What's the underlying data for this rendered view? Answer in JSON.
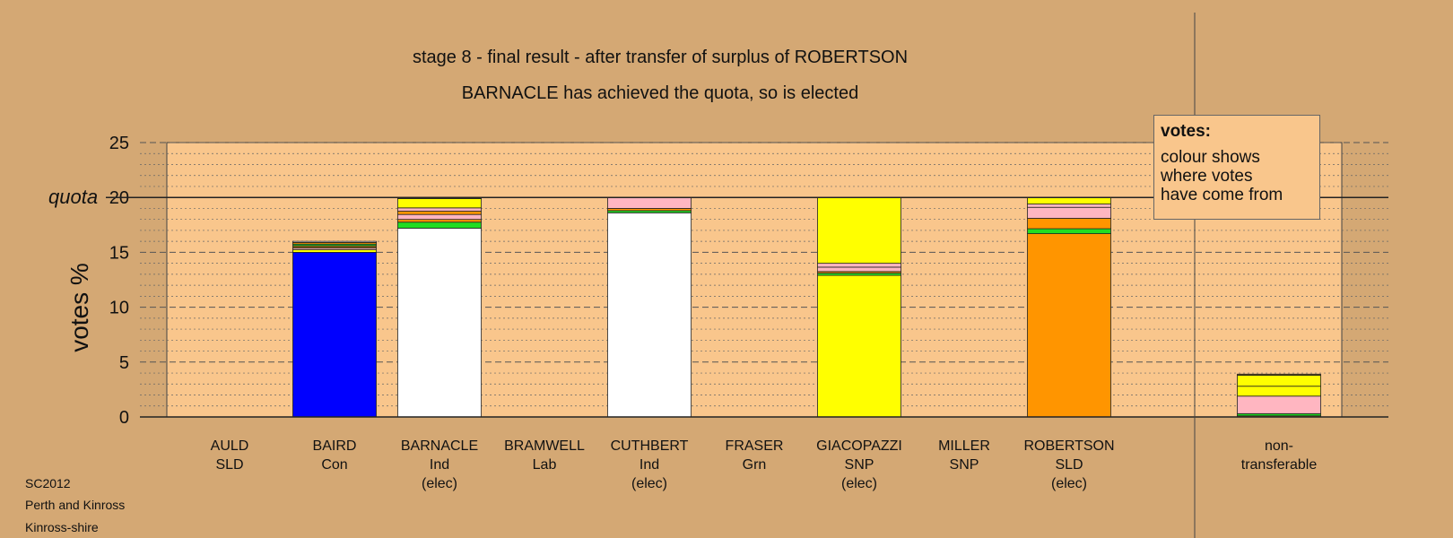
{
  "title": "stage 8 - final result - after transfer of surplus of ROBERTSON",
  "subtitle": "BARNACLE has achieved the quota, so is elected",
  "footer": [
    "SC2012",
    "Perth and Kinross",
    "Kinross-shire"
  ],
  "legend": {
    "title": "votes:",
    "lines": [
      "colour shows",
      "where votes",
      "have come from"
    ]
  },
  "quota_label": "quota",
  "colors": {
    "background": "#D4A874",
    "plot_area": "#F9C68C",
    "Con": "#0000FF",
    "Ind": "#FFFFFF",
    "SNP": "#FFFF00",
    "SLD": "#FF9500",
    "Lab": "#FF0000",
    "Grn": "#22DD22",
    "Ind2": "#FFB6C1",
    "Other": "#8B6914"
  },
  "chart_data": {
    "type": "bar",
    "stacked": true,
    "ylabel": "votes %",
    "ylim": [
      0,
      25
    ],
    "yticks": [
      "0",
      "5",
      "10",
      "15",
      "20",
      "25"
    ],
    "quota": 20,
    "grid": "dashed at 5s, dotted minor",
    "categories": [
      {
        "name": "AULD",
        "party": "SLD",
        "elected": ""
      },
      {
        "name": "BAIRD",
        "party": "Con",
        "elected": ""
      },
      {
        "name": "BARNACLE",
        "party": "Ind",
        "elected": "(elec)"
      },
      {
        "name": "BRAMWELL",
        "party": "Lab",
        "elected": ""
      },
      {
        "name": "CUTHBERT",
        "party": "Ind",
        "elected": "(elec)"
      },
      {
        "name": "FRASER",
        "party": "Grn",
        "elected": ""
      },
      {
        "name": "GIACOPAZZI",
        "party": "SNP",
        "elected": "(elec)"
      },
      {
        "name": "MILLER",
        "party": "SNP",
        "elected": ""
      },
      {
        "name": "ROBERTSON",
        "party": "SLD",
        "elected": "(elec)"
      }
    ],
    "nontransferable_label": [
      "non-",
      "transferable"
    ],
    "bars": [
      [],
      [
        {
          "v": 15.0,
          "c": "#0000FF"
        },
        {
          "v": 0.25,
          "c": "#FFFF00"
        },
        {
          "v": 0.15,
          "c": "#FFB6C1"
        },
        {
          "v": 0.2,
          "c": "#8B6914"
        },
        {
          "v": 0.15,
          "c": "#22DD22"
        },
        {
          "v": 0.15,
          "c": "#FF9500"
        },
        {
          "v": 0.1,
          "c": "#FFFFFF"
        }
      ],
      [
        {
          "v": 17.2,
          "c": "#FFFFFF"
        },
        {
          "v": 0.55,
          "c": "#22DD22"
        },
        {
          "v": 0.25,
          "c": "#FF9500"
        },
        {
          "v": 0.45,
          "c": "#FFB6C1"
        },
        {
          "v": 0.3,
          "c": "#FF9500"
        },
        {
          "v": 0.3,
          "c": "#FFB6C1"
        },
        {
          "v": 0.85,
          "c": "#FFFF00"
        },
        {
          "v": 0.1,
          "c": "#8B6914"
        }
      ],
      [],
      [
        {
          "v": 18.6,
          "c": "#FFFFFF"
        },
        {
          "v": 0.2,
          "c": "#22DD22"
        },
        {
          "v": 0.2,
          "c": "#FF9500"
        },
        {
          "v": 1.0,
          "c": "#FFB6C1"
        }
      ],
      [],
      [
        {
          "v": 12.9,
          "c": "#FFFF00"
        },
        {
          "v": 0.2,
          "c": "#22DD22"
        },
        {
          "v": 0.15,
          "c": "#FF9500"
        },
        {
          "v": 0.4,
          "c": "#FFB6C1"
        },
        {
          "v": 0.35,
          "c": "#FFB6C1"
        },
        {
          "v": 6.0,
          "c": "#FFFF00"
        }
      ],
      [],
      [
        {
          "v": 16.7,
          "c": "#FF9500"
        },
        {
          "v": 0.45,
          "c": "#22DD22"
        },
        {
          "v": 0.95,
          "c": "#FF9500"
        },
        {
          "v": 1.0,
          "c": "#FFB6C1"
        },
        {
          "v": 0.3,
          "c": "#FFB6C1"
        },
        {
          "v": 0.6,
          "c": "#FFFF00"
        }
      ]
    ],
    "nontransferable": [
      {
        "v": 0.1,
        "c": "#FF9500"
      },
      {
        "v": 0.2,
        "c": "#22DD22"
      },
      {
        "v": 1.6,
        "c": "#FFB6C1"
      },
      {
        "v": 0.9,
        "c": "#FFFF00"
      },
      {
        "v": 1.0,
        "c": "#FFFF00"
      },
      {
        "v": 0.1,
        "c": "#8B6914"
      }
    ]
  }
}
